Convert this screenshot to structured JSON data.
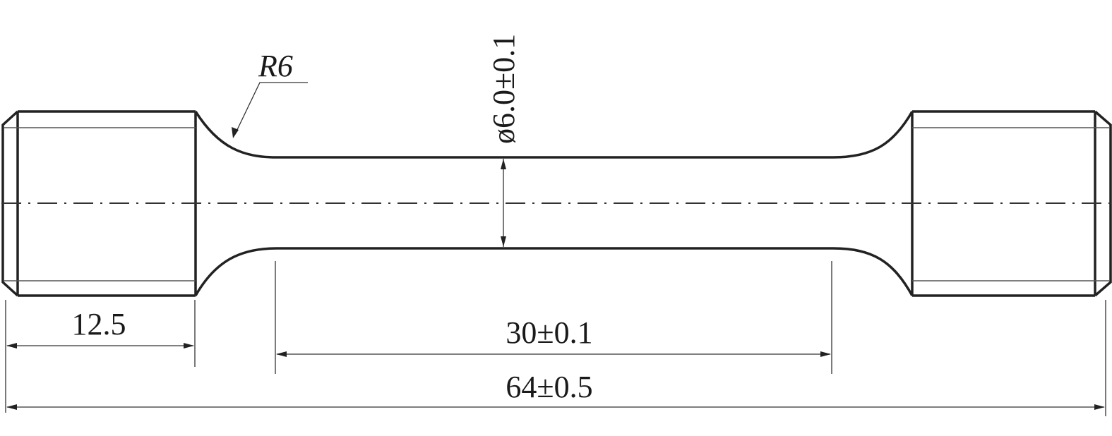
{
  "labels": {
    "radius": "R6",
    "diameter": "ø6.0±0.1",
    "grip_length": "12.5",
    "gauge_length": "30±0.1",
    "total_length": "64±0.5"
  }
}
